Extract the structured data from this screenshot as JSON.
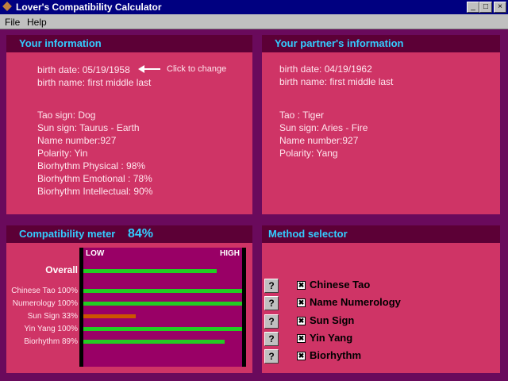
{
  "window": {
    "title": "Lover's Compatibility Calculator",
    "menu": [
      "File",
      "Help"
    ]
  },
  "your_info": {
    "title": "Your information",
    "birth_date": "birth date: 05/19/1958",
    "click_hint": "Click to change",
    "birth_name": "birth name: first middle last",
    "details": [
      "Tao sign: Dog",
      "Sun sign: Taurus - Earth",
      "Name number:927",
      "Polarity: Yin",
      "Biorhythm Physical : 98%",
      "Biorhythm Emotional : 78%",
      "Biorhythm Intellectual: 90%"
    ]
  },
  "partner_info": {
    "title": "Your partner's information",
    "birth_date": "birth date: 04/19/1962",
    "birth_name": "birth name: first middle last",
    "details": [
      "Tao : Tiger",
      "Sun sign: Aries - Fire",
      "Name number:927",
      "Polarity: Yang"
    ]
  },
  "meter": {
    "title": "Compatibility meter",
    "low_label": "LOW",
    "high_label": "HIGH",
    "xlim": [
      0,
      100
    ],
    "bars": [
      {
        "label": "Overall",
        "value": 84,
        "value_label": "84%",
        "color": "#22cc22"
      },
      {
        "label": "Chinese Tao 100%",
        "value": 100,
        "color": "#22cc22"
      },
      {
        "label": "Numerology 100%",
        "value": 100,
        "color": "#22cc22"
      },
      {
        "label": "Sun Sign 33%",
        "value": 33,
        "color": "#cc5500"
      },
      {
        "label": "Yin Yang 100%",
        "value": 100,
        "color": "#22cc22"
      },
      {
        "label": "Biorhythm 89%",
        "value": 89,
        "color": "#22cc22"
      }
    ]
  },
  "method_selector": {
    "title": "Method selector",
    "help_button": "?",
    "methods": [
      "Chinese Tao",
      "Name Numerology",
      "Sun Sign",
      "Yin Yang",
      "Biorhythm"
    ]
  }
}
